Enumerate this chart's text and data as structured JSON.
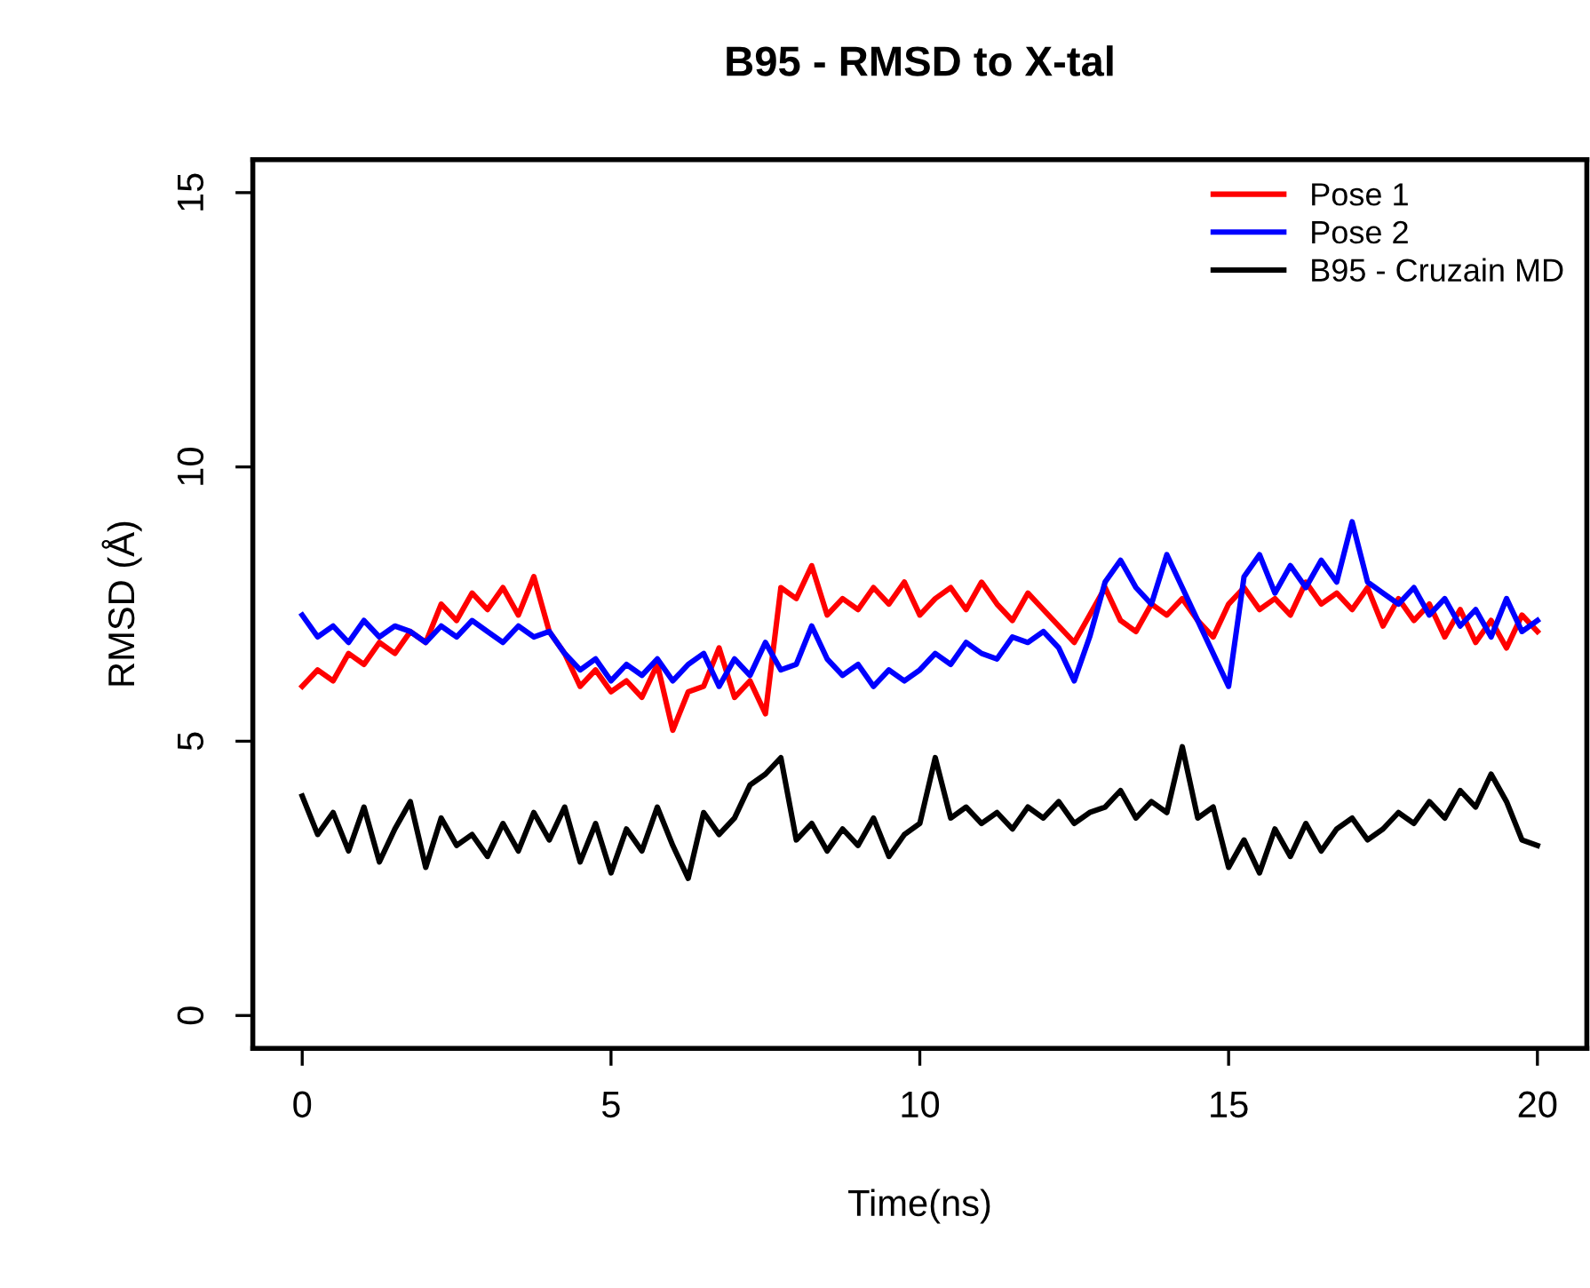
{
  "chart_data": {
    "type": "line",
    "title": "B95 - RMSD to X-tal",
    "xlabel": "Time(ns)",
    "ylabel": "RMSD (Å)",
    "x": [
      0,
      0.25,
      0.5,
      0.75,
      1,
      1.25,
      1.5,
      1.75,
      2,
      2.25,
      2.5,
      2.75,
      3,
      3.25,
      3.5,
      3.75,
      4,
      4.25,
      4.5,
      4.75,
      5,
      5.25,
      5.5,
      5.75,
      6,
      6.25,
      6.5,
      6.75,
      7,
      7.25,
      7.5,
      7.75,
      8,
      8.25,
      8.5,
      8.75,
      9,
      9.25,
      9.5,
      9.75,
      10,
      10.25,
      10.5,
      10.75,
      11,
      11.25,
      11.5,
      11.75,
      12,
      12.25,
      12.5,
      12.75,
      13,
      13.25,
      13.5,
      13.75,
      14,
      14.25,
      14.5,
      14.75,
      15,
      15.25,
      15.5,
      15.75,
      16,
      16.25,
      16.5,
      16.75,
      17,
      17.25,
      17.5,
      17.75,
      18,
      18.25,
      18.5,
      18.75,
      19,
      19.25,
      19.5,
      19.75,
      20
    ],
    "series": [
      {
        "name": "Pose 1",
        "color": "#ff0000",
        "values": [
          6.0,
          6.3,
          6.1,
          6.6,
          6.4,
          6.8,
          6.6,
          7.0,
          6.8,
          7.5,
          7.2,
          7.7,
          7.4,
          7.8,
          7.3,
          8.0,
          7.0,
          6.6,
          6.0,
          6.3,
          5.9,
          6.1,
          5.8,
          6.4,
          5.2,
          5.9,
          6.0,
          6.7,
          5.8,
          6.1,
          5.5,
          7.8,
          7.6,
          8.2,
          7.3,
          7.6,
          7.4,
          7.8,
          7.5,
          7.9,
          7.3,
          7.6,
          7.8,
          7.4,
          7.9,
          7.5,
          7.2,
          7.7,
          7.4,
          7.1,
          6.8,
          7.3,
          7.8,
          7.2,
          7.0,
          7.5,
          7.3,
          7.6,
          7.2,
          6.9,
          7.5,
          7.8,
          7.4,
          7.6,
          7.3,
          7.9,
          7.5,
          7.7,
          7.4,
          7.8,
          7.1,
          7.6,
          7.2,
          7.5,
          6.9,
          7.4,
          6.8,
          7.2,
          6.7,
          7.3,
          7.0
        ]
      },
      {
        "name": "Pose 2",
        "color": "#0000ff",
        "values": [
          7.3,
          6.9,
          7.1,
          6.8,
          7.2,
          6.9,
          7.1,
          7.0,
          6.8,
          7.1,
          6.9,
          7.2,
          7.0,
          6.8,
          7.1,
          6.9,
          7.0,
          6.6,
          6.3,
          6.5,
          6.1,
          6.4,
          6.2,
          6.5,
          6.1,
          6.4,
          6.6,
          6.0,
          6.5,
          6.2,
          6.8,
          6.3,
          6.4,
          7.1,
          6.5,
          6.2,
          6.4,
          6.0,
          6.3,
          6.1,
          6.3,
          6.6,
          6.4,
          6.8,
          6.6,
          6.5,
          6.9,
          6.8,
          7.0,
          6.7,
          6.1,
          6.9,
          7.9,
          8.3,
          7.8,
          7.5,
          8.4,
          7.8,
          7.2,
          6.6,
          6.0,
          8.0,
          8.4,
          7.7,
          8.2,
          7.8,
          8.3,
          7.9,
          9.0,
          7.9,
          7.7,
          7.5,
          7.8,
          7.3,
          7.6,
          7.1,
          7.4,
          6.9,
          7.6,
          7.0,
          7.2
        ]
      },
      {
        "name": "B95 - Cruzain MD",
        "color": "#000000",
        "values": [
          4.0,
          3.3,
          3.7,
          3.0,
          3.8,
          2.8,
          3.4,
          3.9,
          2.7,
          3.6,
          3.1,
          3.3,
          2.9,
          3.5,
          3.0,
          3.7,
          3.2,
          3.8,
          2.8,
          3.5,
          2.6,
          3.4,
          3.0,
          3.8,
          3.1,
          2.5,
          3.7,
          3.3,
          3.6,
          4.2,
          4.4,
          4.7,
          3.2,
          3.5,
          3.0,
          3.4,
          3.1,
          3.6,
          2.9,
          3.3,
          3.5,
          4.7,
          3.6,
          3.8,
          3.5,
          3.7,
          3.4,
          3.8,
          3.6,
          3.9,
          3.5,
          3.7,
          3.8,
          4.1,
          3.6,
          3.9,
          3.7,
          4.9,
          3.6,
          3.8,
          2.7,
          3.2,
          2.6,
          3.4,
          2.9,
          3.5,
          3.0,
          3.4,
          3.6,
          3.2,
          3.4,
          3.7,
          3.5,
          3.9,
          3.6,
          4.1,
          3.8,
          4.4,
          3.9,
          3.2,
          3.1
        ]
      }
    ],
    "xlim": [
      -0.8,
      20.8
    ],
    "ylim": [
      -0.6,
      15.6
    ],
    "xticks": [
      0,
      5,
      10,
      15,
      20
    ],
    "yticks": [
      0,
      5,
      10,
      15
    ],
    "legend": "top right",
    "grid": false,
    "line_style": "solid",
    "marker": "none"
  }
}
